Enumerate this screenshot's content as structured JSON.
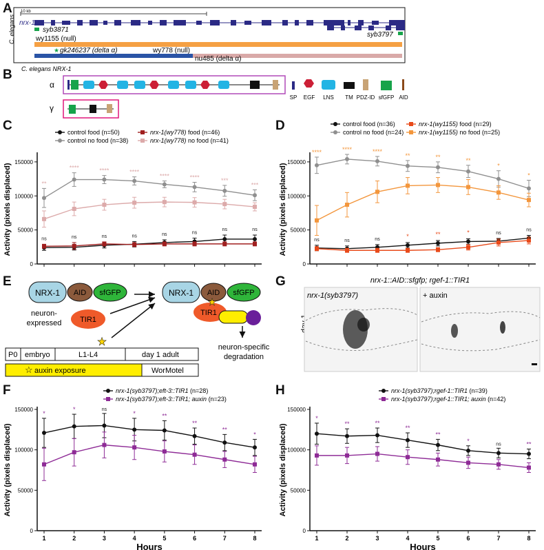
{
  "colors": {
    "black": "#111111",
    "grey": "#8f8f8f",
    "darkred": "#a01f1f",
    "pink": "#dcaaaa",
    "orange_dark": "#e84a1a",
    "orange": "#f3963c",
    "purple": "#8e2b96",
    "gene_blue": "#2b2a85",
    "green": "#17a34a",
    "null_bar": "#f5a043",
    "null778": "#d9a9a8",
    "delta_bar": "#2a54a6",
    "box_magenta": "#b148b8",
    "yellow": "#ffee00"
  },
  "panelA": {
    "label": "A",
    "scale": "10 kb",
    "gene": "nrx-1",
    "species": "C. elegans",
    "allele1": "syb3871",
    "allele2": "syb3797",
    "wy1155": "wy1155 (null)",
    "gk": "gk246237 (delta α)",
    "wy778": "wy778 (null)",
    "nu485": "nu485 (delta α)"
  },
  "panelB": {
    "label": "B",
    "title": "C. elegans NRX-1",
    "alpha": "α",
    "gamma": "γ",
    "legend": [
      "SP",
      "EGF",
      "LNS",
      "TM",
      "PDZ-ID",
      "sfGFP",
      "AID"
    ]
  },
  "panelE": {
    "label": "E",
    "nrx": "NRX-1",
    "aid": "AID",
    "sfgfp": "sfGFP",
    "tir1": "TIR1",
    "neuron1": "neuron-",
    "neuron2": "expressed",
    "auxin": "auxin",
    "degr1": "neuron-specific",
    "degr2": "degradation",
    "timeline": [
      "P0",
      "embryo",
      "L1-L4",
      "day 1 adult"
    ],
    "exposure": "auxin exposure",
    "wormotel": "WorMotel"
  },
  "panelG": {
    "label": "G",
    "title": "nrx-1::AID::sfgfp; rgef-1::TIR1",
    "left": "nrx-1(syb3797)",
    "right": "+ auxin",
    "day": "day 1"
  },
  "chart_data": [
    {
      "panel": "C",
      "type": "line",
      "xlabel": "Hours",
      "ylabel": "Activity (pixels displaced)",
      "x": [
        1,
        2,
        3,
        4,
        5,
        6,
        7,
        8
      ],
      "ylim": [
        0,
        160000
      ],
      "yticks": [
        "0",
        "50000",
        "100000",
        "150000"
      ],
      "series": [
        {
          "name": "control food (n=50)",
          "color": "#111111",
          "marker": "circle",
          "values": [
            24000,
            24500,
            27500,
            29000,
            31500,
            33000,
            36500,
            36500
          ],
          "err": [
            4000,
            4000,
            4000,
            4000,
            4000,
            5000,
            6000,
            6000
          ]
        },
        {
          "name": "control no food (n=38)",
          "color": "#8f8f8f",
          "marker": "circle",
          "values": [
            97000,
            124000,
            124000,
            122000,
            117000,
            113000,
            107500,
            101000
          ],
          "err": [
            14000,
            10000,
            6000,
            6000,
            5000,
            7000,
            8000,
            8000
          ]
        },
        {
          "name": "nrx-1(wy778) food (n=46)",
          "color": "#a01f1f",
          "marker": "square",
          "values": [
            26000,
            26500,
            29500,
            28500,
            29500,
            29500,
            29500,
            29500
          ],
          "err": [
            3000,
            5000,
            3000,
            3000,
            3000,
            3000,
            3000,
            3000
          ]
        },
        {
          "name": "nrx-1(wy778) no food (n=41)",
          "color": "#dcaaaa",
          "marker": "square",
          "values": [
            66000,
            81000,
            87000,
            90000,
            91000,
            90500,
            88000,
            84000
          ],
          "err": [
            12000,
            10000,
            8000,
            8000,
            7000,
            7000,
            7000,
            6000
          ]
        }
      ],
      "sig_top": [
        "**",
        "****",
        "****",
        "****",
        "****",
        "****",
        "***",
        "***"
      ],
      "sig_bottom": [
        "ns",
        "ns",
        "ns",
        "ns",
        "ns",
        "ns",
        "ns",
        "ns"
      ]
    },
    {
      "panel": "D",
      "type": "line",
      "xlabel": "Hours",
      "ylabel": "Activity (pixels displaced)",
      "x": [
        1,
        2,
        3,
        4,
        5,
        6,
        7,
        8
      ],
      "ylim": [
        0,
        160000
      ],
      "yticks": [
        "0",
        "50000",
        "100000",
        "150000"
      ],
      "series": [
        {
          "name": "control food (n=36)",
          "color": "#111111",
          "marker": "circle",
          "values": [
            23500,
            22500,
            24500,
            27500,
            30500,
            33000,
            33500,
            38000
          ],
          "err": [
            4000,
            4000,
            4000,
            4000,
            4000,
            4000,
            4000,
            4000
          ]
        },
        {
          "name": "control no food (n=24)",
          "color": "#8f8f8f",
          "marker": "circle",
          "values": [
            145000,
            154000,
            151000,
            144000,
            142000,
            136000,
            125000,
            111000
          ],
          "err": [
            12000,
            7000,
            7000,
            8000,
            8000,
            9000,
            12000,
            12000
          ]
        },
        {
          "name": "nrx-1(wy1155) food (n=29)",
          "color": "#e84a1a",
          "marker": "square",
          "values": [
            22500,
            20000,
            20000,
            20000,
            21000,
            24500,
            31500,
            34500
          ],
          "err": [
            3000,
            3000,
            3000,
            3000,
            3000,
            4000,
            5000,
            5000
          ]
        },
        {
          "name": "nrx-1(wy1155) no food (n=25)",
          "color": "#f3963c",
          "marker": "square",
          "values": [
            64000,
            87000,
            106000,
            115000,
            116000,
            113000,
            105000,
            94000
          ],
          "err": [
            22000,
            18000,
            16000,
            12000,
            11000,
            11000,
            10000,
            10000
          ]
        }
      ],
      "sig_top": [
        "****",
        "****",
        "****",
        "**",
        "**",
        "**",
        "*",
        "*"
      ],
      "sig_bottom": [
        "ns",
        "ns",
        "ns",
        "*",
        "**",
        "*",
        "ns",
        "ns"
      ]
    },
    {
      "panel": "F",
      "type": "line",
      "xlabel": "Hours",
      "ylabel": "Activity (pixels displaced)",
      "x": [
        1,
        2,
        3,
        4,
        5,
        6,
        7,
        8
      ],
      "ylim": [
        0,
        150000
      ],
      "yticks": [
        "0",
        "50000",
        "100000",
        "150000"
      ],
      "series": [
        {
          "name": "nrx-1(syb3797);eft-3::TIR1 (n=28)",
          "color": "#111111",
          "marker": "circle",
          "values": [
            121000,
            129000,
            130000,
            125000,
            124000,
            117000,
            109000,
            103000
          ],
          "err": [
            18000,
            15000,
            15000,
            14000,
            12000,
            10000,
            10000,
            10000
          ]
        },
        {
          "name": "nrx-1(syb3797);eft-3::TIR1; auxin (n=23)",
          "color": "#8e2b96",
          "marker": "square",
          "values": [
            82000,
            97000,
            106000,
            103000,
            98000,
            94000,
            88000,
            82000
          ],
          "err": [
            20000,
            17000,
            16000,
            15000,
            13000,
            12000,
            10000,
            10000
          ]
        }
      ],
      "sig_top": [
        "*",
        "*",
        "ns",
        "*",
        "**",
        "**",
        "**",
        "*"
      ],
      "sig_bottom": []
    },
    {
      "panel": "H",
      "type": "line",
      "xlabel": "Hours",
      "ylabel": "Activity (pixels displaced)",
      "x": [
        1,
        2,
        3,
        4,
        5,
        6,
        7,
        8
      ],
      "ylim": [
        0,
        150000
      ],
      "yticks": [
        "0",
        "50000",
        "100000",
        "150000"
      ],
      "series": [
        {
          "name": "nrx-1(syb3797);rgef-1::TIR1 (n=39)",
          "color": "#111111",
          "marker": "circle",
          "values": [
            120000,
            117000,
            118000,
            112000,
            106000,
            99000,
            96000,
            95000
          ],
          "err": [
            13000,
            9000,
            9000,
            9000,
            7000,
            6000,
            6000,
            6000
          ]
        },
        {
          "name": "nrx-1(syb3797);rgef-1::TIR1; auxin (n=42)",
          "color": "#8e2b96",
          "marker": "square",
          "values": [
            93000,
            93000,
            95000,
            91000,
            88000,
            84000,
            82000,
            78000
          ],
          "err": [
            12000,
            10000,
            9000,
            9000,
            8000,
            7000,
            6000,
            6000
          ]
        }
      ],
      "sig_top": [
        "*",
        "**",
        "**",
        "**",
        "**",
        "*",
        "ns",
        "**"
      ],
      "sig_bottom": []
    }
  ]
}
